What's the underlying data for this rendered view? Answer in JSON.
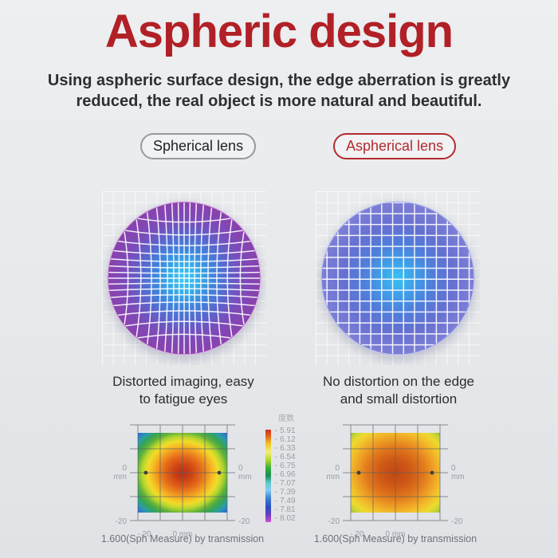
{
  "page": {
    "title": "Aspheric design",
    "title_color": "#b12026",
    "subtitle": [
      "Using aspheric surface design, the edge aberration is greatly",
      "reduced, the real object is more natural and beautiful."
    ]
  },
  "badges": {
    "spherical": "Spherical lens",
    "aspherical": "Aspherical lens",
    "aspherical_color": "#b42a2e"
  },
  "lens_diagrams": {
    "left": {
      "caption": [
        "Distorted imaging, easy",
        "to fatigue eyes"
      ],
      "distorted": true,
      "rim": "#d9b4e2",
      "gradient": [
        [
          "0%",
          "#3cc9f2"
        ],
        [
          "18%",
          "#37b0ea"
        ],
        [
          "38%",
          "#3f84dd"
        ],
        [
          "58%",
          "#5b64cc"
        ],
        [
          "76%",
          "#7a4cba"
        ],
        [
          "100%",
          "#8b41ad"
        ]
      ]
    },
    "right": {
      "caption": [
        "No distortion on the edge",
        "and small distortion"
      ],
      "distorted": false,
      "rim": "#bcc6f0",
      "gradient": [
        [
          "0%",
          "#38c2f0"
        ],
        [
          "22%",
          "#3fa0e8"
        ],
        [
          "45%",
          "#4f7edb"
        ],
        [
          "70%",
          "#6570d0"
        ],
        [
          "100%",
          "#7e7fd6"
        ]
      ]
    }
  },
  "heatmaps": {
    "axis": {
      "zero": "0",
      "unit": "mm",
      "neg20": "-20",
      "x_left": "- 20",
      "x_center": "0 mm"
    },
    "left": {
      "caption": "1.600(Sph Measure) by transmission",
      "gradient": [
        [
          "0%",
          "#b92d16"
        ],
        [
          "14%",
          "#cc4414"
        ],
        [
          "27%",
          "#e2641a"
        ],
        [
          "38%",
          "#f0901e"
        ],
        [
          "47%",
          "#f6bb24"
        ],
        [
          "55%",
          "#f0dc2a"
        ],
        [
          "63%",
          "#b5d530"
        ],
        [
          "71%",
          "#5fb13b"
        ],
        [
          "79%",
          "#35a258"
        ],
        [
          "86%",
          "#2b9f9f"
        ],
        [
          "93%",
          "#2e7ec9"
        ],
        [
          "100%",
          "#2456c8"
        ]
      ]
    },
    "right": {
      "caption": "1.600(Sph Measure) by transmission",
      "gradient": [
        [
          "0%",
          "#c24512"
        ],
        [
          "25%",
          "#cf5a16"
        ],
        [
          "45%",
          "#e27a1c"
        ],
        [
          "60%",
          "#eea025"
        ],
        [
          "72%",
          "#f3c02b"
        ],
        [
          "83%",
          "#edda2f"
        ],
        [
          "92%",
          "#c3d236"
        ],
        [
          "100%",
          "#7cb441"
        ]
      ]
    }
  },
  "legend": {
    "title": "度数",
    "labels": [
      "- 5.91",
      "- 6.12",
      "- 6.33",
      "- 6.54",
      "- 6.75",
      "- 6.96",
      "- 7.07",
      "- 7.39",
      "- 7.49",
      "- 7.81",
      "- 8.02"
    ],
    "bar_gradient": [
      [
        "0%",
        "#cf2b1e"
      ],
      [
        "7%",
        "#e2661a"
      ],
      [
        "15%",
        "#eec41f"
      ],
      [
        "24%",
        "#f4ee7a"
      ],
      [
        "32%",
        "#b8da2e"
      ],
      [
        "42%",
        "#33ac3c"
      ],
      [
        "50%",
        "#1e8e54"
      ],
      [
        "57%",
        "#59c9c9"
      ],
      [
        "65%",
        "#86cdf0"
      ],
      [
        "74%",
        "#3f80d2"
      ],
      [
        "84%",
        "#2b4ec2"
      ],
      [
        "92%",
        "#6a3ec6"
      ],
      [
        "100%",
        "#cf4ed2"
      ]
    ]
  },
  "chart_data": [
    {
      "type": "heatmap",
      "name": "spherical-lens-power-map",
      "caption": "1.600(Sph Measure) by transmission",
      "x_axis": {
        "ticks": [
          "- 20",
          "0 mm"
        ],
        "range_mm": [
          -20,
          20
        ]
      },
      "y_axis": {
        "ticks": [
          "0 mm",
          "-20"
        ],
        "range_mm": [
          -20,
          20
        ]
      },
      "values": {
        "center": -5.91,
        "mid_ring": -6.75,
        "edges": -7.07,
        "corners": -7.81
      },
      "palette": "red center, orange/yellow rings, green, blue corners"
    },
    {
      "type": "heatmap",
      "name": "aspherical-lens-power-map",
      "caption": "1.600(Sph Measure) by transmission",
      "x_axis": {
        "ticks": [
          "- 20",
          "0 mm"
        ],
        "range_mm": [
          -20,
          20
        ]
      },
      "y_axis": {
        "ticks": [
          "0 mm",
          "-20"
        ],
        "range_mm": [
          -20,
          20
        ]
      },
      "values": {
        "center": -6.12,
        "mid_ring": -6.33,
        "edges": -6.54,
        "corners": -6.96
      },
      "palette": "orange-red center, yellow edges, green corners"
    },
    {
      "type": "colorbar",
      "name": "power-scale",
      "title": "度数",
      "tick_values": [
        -5.91,
        -6.12,
        -6.33,
        -6.54,
        -6.75,
        -6.96,
        -7.07,
        -7.39,
        -7.49,
        -7.81,
        -8.02
      ]
    }
  ]
}
